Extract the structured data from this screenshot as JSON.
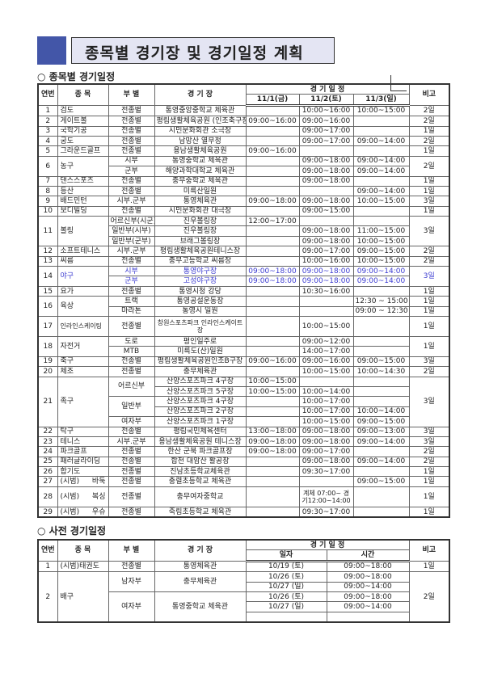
{
  "title": "종목별 경기장 및 경기일정 계획",
  "section1": "○ 종목별 경기일정",
  "section2": "○ 사전 경기일정",
  "colors": {
    "title_square": "#4356a8",
    "title_box": "#e4e5f3",
    "highlight_text": "#3b3bd0"
  },
  "table1": {
    "headers": [
      "연번",
      "종 목",
      "부 별",
      "경 기 장",
      "경 기 일 정",
      "비고"
    ],
    "date_headers": [
      "11/1(금)",
      "11/2(토)",
      "11/3(일)"
    ],
    "rows": [
      [
        "1",
        "검도",
        "전종별",
        "통영중앙중학교 체육관",
        "",
        "10:00~16:00",
        "10:00~15:00",
        "2일"
      ],
      [
        "2",
        "게이트볼",
        "전종별",
        "평림생활체육공원 (인조축구장)",
        "09:00~16:00",
        "09:00~16:00",
        "",
        "2일"
      ],
      [
        "3",
        "국학기공",
        "전종별",
        "시민문화회관 소극장",
        "",
        "09:00~17:00",
        "",
        "1일"
      ],
      [
        "4",
        "궁도",
        "전종별",
        "남망산 열무정",
        "",
        "09:00~17:00",
        "09:00~14:00",
        "2일"
      ],
      [
        "5",
        "그라운드골프",
        "전종별",
        "용남생활체육공원",
        "09:00~16:00",
        "",
        "",
        "1일"
      ],
      [
        {
          "t": "6",
          "rs": 2
        },
        {
          "t": "농구",
          "rs": 2
        },
        "시부",
        "통영중학교 체육관",
        "",
        "09:00~18:00",
        "09:00~14:00",
        {
          "t": "2일",
          "rs": 2
        }
      ],
      [
        "군부",
        "해양과학대학교 체육관",
        "",
        "09:00~18:00",
        "09:00~14:00"
      ],
      [
        "7",
        "댄스스포츠",
        "전종별",
        "충무중학교 체육관",
        "",
        "09:00~18:00",
        "",
        "1일"
      ],
      [
        "8",
        "등산",
        "전종별",
        "미륵산일원",
        "",
        "",
        "09:00~14:00",
        "1일"
      ],
      [
        "9",
        "배드민턴",
        "시부.군부",
        "통영체육관",
        "09:00~18:00",
        "09:00~18:00",
        "10:00~15:00",
        "3일"
      ],
      [
        "10",
        "보디빌딩",
        "전종별",
        "시민문화회관 대극장",
        "",
        "09:00~15:00",
        "",
        "1일"
      ],
      [
        {
          "t": "11",
          "rs": 3
        },
        {
          "t": "볼링",
          "rs": 3
        },
        "어르신부(시군)",
        "진우볼링장",
        "12:00~17:00",
        "",
        "",
        {
          "t": "3일",
          "rs": 3
        }
      ],
      [
        "일반부(시부)",
        "진우볼링장",
        "",
        "09:00~18:00",
        "11:00~15:00"
      ],
      [
        "일반부(군부)",
        "브래그볼링장",
        "",
        "09:00~18:00",
        "10:00~15:00"
      ],
      [
        "12",
        "소프트테니스",
        "시부.군부",
        "평림생활체육공원테니스장",
        "",
        "09:00~17:00",
        "09:00~15:00",
        "2일"
      ],
      [
        "13",
        "씨름",
        "전종별",
        "충무고등학교 씨름장",
        "",
        "10:00~16:00",
        "10:00~15:00",
        "2일"
      ],
      [
        {
          "t": "14",
          "rs": 2
        },
        {
          "t": "야구",
          "rs": 2,
          "c": "blue"
        },
        {
          "t": "시부",
          "c": "blue"
        },
        {
          "t": "통영야구장",
          "c": "blue"
        },
        {
          "t": "09:00~18:00",
          "c": "blue"
        },
        {
          "t": "09:00~18:00",
          "c": "blue"
        },
        {
          "t": "09:00~14:00",
          "c": "blue"
        },
        {
          "t": "3일",
          "rs": 2,
          "c": "blue"
        }
      ],
      [
        {
          "t": "군부",
          "c": "blue"
        },
        {
          "t": "고성야구장",
          "c": "blue"
        },
        {
          "t": "09:00~18:00",
          "c": "blue"
        },
        {
          "t": "09:00~18:00",
          "c": "blue"
        },
        {
          "t": "09:00~14:00",
          "c": "blue"
        }
      ],
      [
        "15",
        "요가",
        "전종별",
        "통영시청 강당",
        "",
        "10:30~16:00",
        "",
        "1일"
      ],
      [
        {
          "t": "16",
          "rs": 2
        },
        {
          "t": "육상",
          "rs": 2
        },
        "트랙",
        "통영공설운동장",
        "",
        "",
        "12:30 ~ 15:00",
        "1일"
      ],
      [
        "마라톤",
        "통영시 일원",
        "",
        "",
        "09:00 ~ 12:30",
        "1일"
      ],
      [
        {
          "t": "17",
          "c": "dbl"
        },
        {
          "t": "인라인스케이팅",
          "c": "dbl small"
        },
        "전종별",
        {
          "t": "창원스포츠파크 인라인스케이트장",
          "c": "small"
        },
        "",
        "10:00~15:00",
        "",
        "1일"
      ],
      [
        {
          "t": "18",
          "rs": 2
        },
        {
          "t": "자전거",
          "rs": 2
        },
        "도로",
        "평인일주로",
        "",
        "09:00~12:00",
        "",
        {
          "t": "1일",
          "rs": 2
        }
      ],
      [
        "MTB",
        "미륵도(산)일원",
        "",
        "14:00~17:00",
        ""
      ],
      [
        "19",
        "축구",
        "전종별",
        "평림생활체육공원인조B구장",
        "09:00~16:00",
        "09:00~16:00",
        "09:00~15:00",
        "3일"
      ],
      [
        "20",
        "체조",
        "전종별",
        "충무체육관",
        "",
        "10:00~15:00",
        "10:00~14:30",
        "2일"
      ],
      [
        {
          "t": "21",
          "rs": 5
        },
        {
          "t": "족구",
          "rs": 5
        },
        {
          "t": "어르신부",
          "rs": 2
        },
        "산양스포츠파크 4구장",
        "10:00~15:00",
        "",
        "",
        {
          "t": "3일",
          "rs": 5
        }
      ],
      [
        "산양스포츠파크 5구장",
        "10:00~15:00",
        "10:00~14:00",
        ""
      ],
      [
        {
          "t": "일반부",
          "rs": 2
        },
        "산양스포츠파크 4구장",
        "",
        "10:00~17:00",
        ""
      ],
      [
        "산양스포츠파크 2구장",
        "",
        "10:00~17:00",
        "10:00~14:00"
      ],
      [
        "여자부",
        "산양스포츠파크 1구장",
        "",
        "10:00~15:00",
        "09:00~15:00"
      ],
      [
        "22",
        "탁구",
        "전종별",
        "평림국민체육센터",
        "13:00~18:00",
        "09:00~18:00",
        "09:00~13:00",
        "3일"
      ],
      [
        "23",
        "테니스",
        "시부.군부",
        "용남생활체육공원 테니스장",
        "09:00~18:00",
        "09:00~18:00",
        "09:00~14:00",
        "3일"
      ],
      [
        "24",
        "파크골프",
        "전종별",
        "한산 군북 파크골프장",
        "09:00~18:00",
        "09:00~17:00",
        "",
        "2일"
      ],
      [
        "25",
        "패러글라이딩",
        "전종별",
        "합천 대암산 활공장",
        "",
        "09:00~18:00",
        "09:00~14:00",
        "2일"
      ],
      [
        "26",
        "합기도",
        "전종별",
        "진남초등학교체육관",
        "",
        "09:30~17:00",
        "",
        "1일"
      ],
      [
        "27",
        "(시범) 바둑",
        "전종별",
        "충렬초등학교 체육관",
        "",
        "",
        "09:00~15:00",
        "1일"
      ],
      [
        {
          "t": "28",
          "c": "dbl"
        },
        "(시범) 복싱",
        "전종별",
        "충무여자중학교",
        "",
        {
          "t": "계체 07:00~ 경기12:00~14:00",
          "c": "small"
        },
        "",
        "1일"
      ],
      [
        "29",
        "(시범) 우슈",
        "전종별",
        "죽림초등학교 체육관",
        "",
        "09:30~17:00",
        "",
        "1일"
      ]
    ]
  },
  "table2": {
    "headers": [
      "연번",
      "종 목",
      "부 별",
      "경 기 장",
      "경 기 일 정",
      "비고"
    ],
    "date_headers": [
      "일자",
      "시간"
    ],
    "rows": [
      [
        "1",
        "(시범)태권도",
        "전종별",
        "통영체육관",
        "10/19 (토)",
        "09:00~18:00",
        "1일"
      ],
      [
        {
          "t": "2",
          "rs": 5
        },
        {
          "t": "배구",
          "rs": 5
        },
        {
          "t": "남자부",
          "rs": 2
        },
        {
          "t": "충무체육관",
          "rs": 2
        },
        "10/26 (토)",
        "09:00~18:00",
        {
          "t": "2일",
          "rs": 5
        }
      ],
      [
        "10/27 (일)",
        "09:00~14:00"
      ],
      [
        {
          "t": "여자부",
          "rs": 3
        },
        {
          "t": "통영중학교 체육관",
          "rs": 3
        },
        "10/26 (토)",
        "09:00~18:00"
      ],
      [
        "10/27 (일)",
        "09:00~14:00"
      ],
      [
        "",
        ""
      ]
    ]
  }
}
